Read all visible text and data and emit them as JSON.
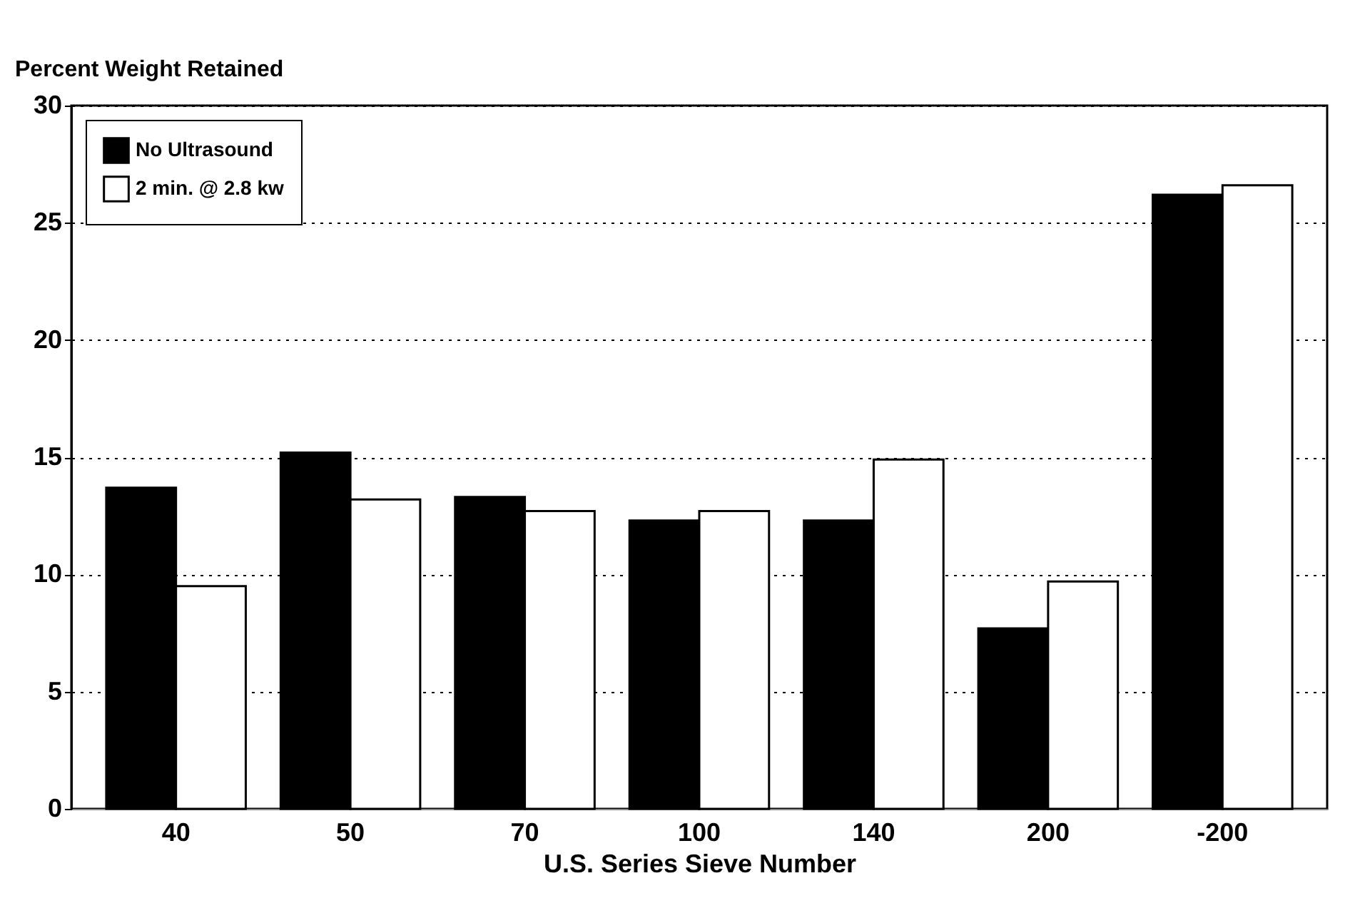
{
  "chart_data": {
    "type": "bar",
    "ylabel": "Percent Weight Retained",
    "xlabel": "U.S. Series Sieve Number",
    "categories": [
      "40",
      "50",
      "70",
      "100",
      "140",
      "200",
      "-200"
    ],
    "series": [
      {
        "name": "No Ultrasound",
        "color": "#000000",
        "values": [
          13.7,
          15.2,
          13.3,
          12.3,
          12.3,
          7.7,
          26.2
        ]
      },
      {
        "name": "2 min. @ 2.8 kw",
        "color": "#ffffff",
        "values": [
          9.5,
          13.2,
          12.7,
          12.7,
          14.9,
          9.7,
          26.6
        ]
      }
    ],
    "ylim": [
      0,
      30
    ],
    "yticks": [
      0,
      5,
      10,
      15,
      20,
      25,
      30
    ],
    "grid": "y",
    "legend": "top left"
  }
}
